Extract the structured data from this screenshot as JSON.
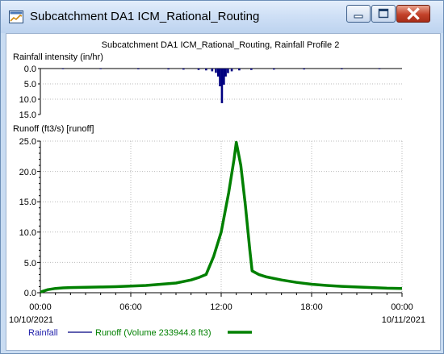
{
  "window": {
    "title": "Subcatchment DA1 ICM_Rational_Routing"
  },
  "chart_data": [
    {
      "type": "bar",
      "title": "Subcatchment DA1 ICM_Rational_Routing, Rainfall Profile 2",
      "ylabel": "Rainfall intensity (in/hr)",
      "y_inverted": true,
      "ylim": [
        0,
        15
      ],
      "yticks": [
        "0.0",
        "5.0",
        "10.0",
        "15.0"
      ],
      "xlim_hours": [
        0,
        24
      ],
      "color": "#000080",
      "hours": [
        1.5,
        4.0,
        6.5,
        8.5,
        9.5,
        10.5,
        11.0,
        11.4,
        11.65,
        11.8,
        11.92,
        12.05,
        12.18,
        12.3,
        12.45,
        12.7,
        13.2,
        14.0,
        15.5,
        17.5,
        20.0,
        22.5
      ],
      "values": [
        0.2,
        0.2,
        0.25,
        0.3,
        0.35,
        0.45,
        0.6,
        0.9,
        1.4,
        2.6,
        5.8,
        11.3,
        5.3,
        2.6,
        1.5,
        0.9,
        0.6,
        0.45,
        0.35,
        0.3,
        0.25,
        0.2
      ]
    },
    {
      "type": "line",
      "ylabel": "Runoff (ft3/s) [runoff]",
      "ylim": [
        0,
        25
      ],
      "yticks": [
        "0.0",
        "5.0",
        "10.0",
        "15.0",
        "20.0",
        "25.0"
      ],
      "xticks": [
        "00:00",
        "06:00",
        "12:00",
        "18:00",
        "00:00"
      ],
      "xdates": [
        "10/10/2021",
        "10/11/2021"
      ],
      "color": "#008000",
      "x_hours": [
        0,
        0.5,
        1,
        1.5,
        2,
        3,
        4,
        5,
        6,
        7,
        8,
        9,
        10,
        10.5,
        11,
        11.5,
        12,
        12.5,
        12.85,
        13,
        13.3,
        13.6,
        13.9,
        14.05,
        14.5,
        15,
        16,
        17,
        18,
        19,
        20,
        21,
        22,
        23,
        24
      ],
      "y": [
        0.1,
        0.5,
        0.7,
        0.8,
        0.85,
        0.9,
        0.95,
        1.0,
        1.1,
        1.2,
        1.4,
        1.6,
        2.1,
        2.5,
        3.0,
        6.0,
        10.0,
        16.5,
        22.0,
        24.8,
        21.0,
        14.5,
        7.0,
        3.6,
        3.0,
        2.6,
        2.1,
        1.7,
        1.4,
        1.2,
        1.05,
        0.95,
        0.85,
        0.75,
        0.7
      ]
    }
  ],
  "legend": {
    "rainfall_label": "Rainfall",
    "runoff_label": "Runoff (Volume 233944.8 ft3)"
  }
}
